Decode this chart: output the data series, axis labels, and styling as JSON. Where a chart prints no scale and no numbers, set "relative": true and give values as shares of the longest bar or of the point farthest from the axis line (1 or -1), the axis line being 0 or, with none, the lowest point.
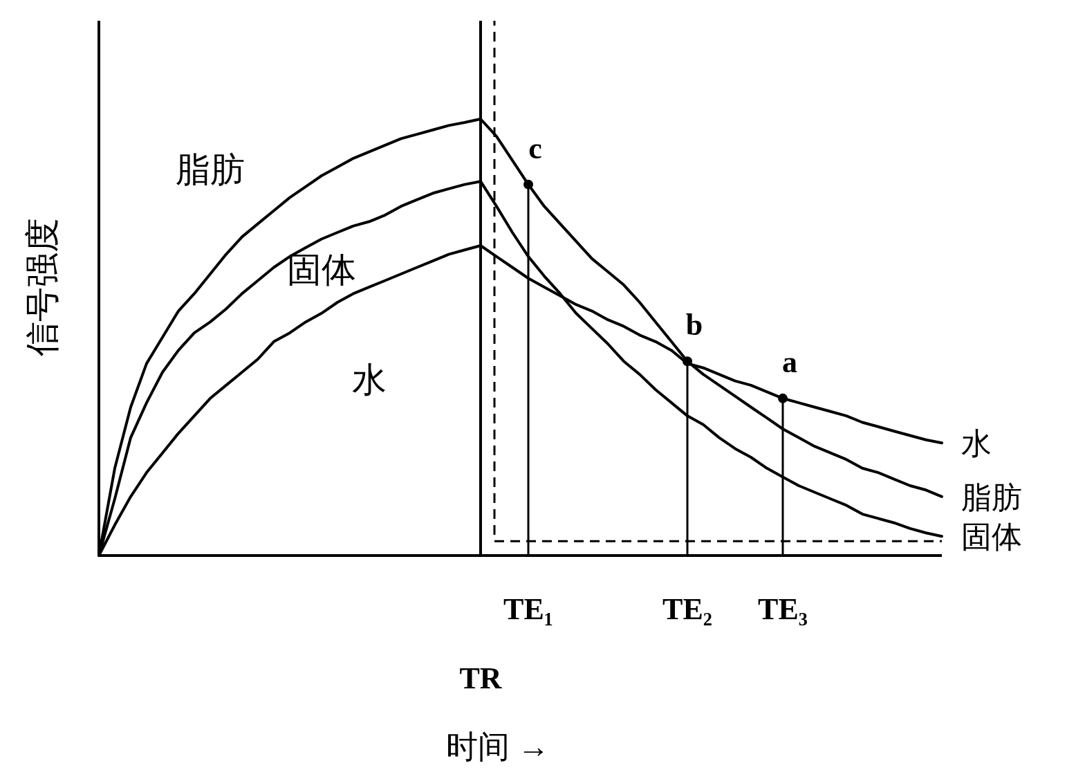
{
  "chart_data": {
    "type": "line",
    "relative": true,
    "xlabel": "时间 →",
    "ylabel": "信号强度",
    "categories": [
      null,
      null,
      null,
      null,
      null,
      null,
      null,
      null,
      null,
      null,
      null,
      null,
      null,
      null,
      null,
      null,
      null,
      null,
      null,
      null,
      null,
      null,
      null,
      null,
      null,
      null,
      null,
      "TE₁",
      null,
      null,
      null,
      null,
      null,
      null,
      null,
      null,
      null,
      "TE₂",
      null,
      null,
      null,
      null,
      null,
      "TE₃",
      null,
      null,
      null,
      null,
      null,
      null,
      null,
      null,
      null,
      null
    ],
    "series": [
      {
        "name": "脂肪",
        "color": "#000000",
        "values": [
          0,
          0.2,
          0.34,
          0.44,
          0.5,
          0.56,
          0.6,
          0.645,
          0.69,
          0.73,
          0.76,
          0.79,
          0.82,
          0.845,
          0.87,
          0.89,
          0.91,
          0.925,
          0.94,
          0.955,
          0.965,
          0.975,
          0.985,
          0.992,
          1,
          0.96,
          0.905,
          0.85,
          0.8,
          0.76,
          0.72,
          0.68,
          0.65,
          0.62,
          0.58,
          0.535,
          0.49,
          0.445,
          0.415,
          0.39,
          0.365,
          0.34,
          0.315,
          0.29,
          0.27,
          0.25,
          0.235,
          0.22,
          0.2,
          0.19,
          0.175,
          0.16,
          0.15,
          0.135
        ]
      },
      {
        "name": "固体",
        "color": "#000000",
        "values": [
          0,
          0.13,
          0.27,
          0.35,
          0.42,
          0.47,
          0.51,
          0.535,
          0.565,
          0.6,
          0.63,
          0.66,
          0.685,
          0.705,
          0.725,
          0.74,
          0.755,
          0.765,
          0.78,
          0.8,
          0.815,
          0.83,
          0.84,
          0.85,
          0.857,
          0.8,
          0.74,
          0.685,
          0.64,
          0.6,
          0.555,
          0.52,
          0.485,
          0.445,
          0.415,
          0.38,
          0.35,
          0.32,
          0.3,
          0.27,
          0.245,
          0.225,
          0.2,
          0.18,
          0.16,
          0.145,
          0.13,
          0.115,
          0.095,
          0.085,
          0.075,
          0.062,
          0.052,
          0.044
        ]
      },
      {
        "name": "水",
        "color": "#000000",
        "values": [
          0,
          0.07,
          0.135,
          0.19,
          0.235,
          0.28,
          0.32,
          0.36,
          0.39,
          0.42,
          0.45,
          0.49,
          0.51,
          0.535,
          0.555,
          0.58,
          0.6,
          0.615,
          0.63,
          0.645,
          0.66,
          0.675,
          0.69,
          0.7,
          0.71,
          0.685,
          0.66,
          0.635,
          0.615,
          0.595,
          0.575,
          0.56,
          0.54,
          0.525,
          0.505,
          0.49,
          0.47,
          0.44,
          0.43,
          0.415,
          0.4,
          0.39,
          0.375,
          0.36,
          0.35,
          0.34,
          0.33,
          0.32,
          0.305,
          0.295,
          0.285,
          0.275,
          0.265,
          0.258
        ]
      }
    ],
    "ref_lines": [
      {
        "axis": "y",
        "value": 0.033,
        "line_style": "dashed"
      }
    ],
    "annotations": [
      {
        "text": "c",
        "x": "TE₁",
        "y": 0.85
      },
      {
        "text": "b",
        "x": "TE₂",
        "y": 0.445
      },
      {
        "text": "a",
        "x": "TE₃",
        "y": 0.36
      },
      "TR"
    ]
  }
}
